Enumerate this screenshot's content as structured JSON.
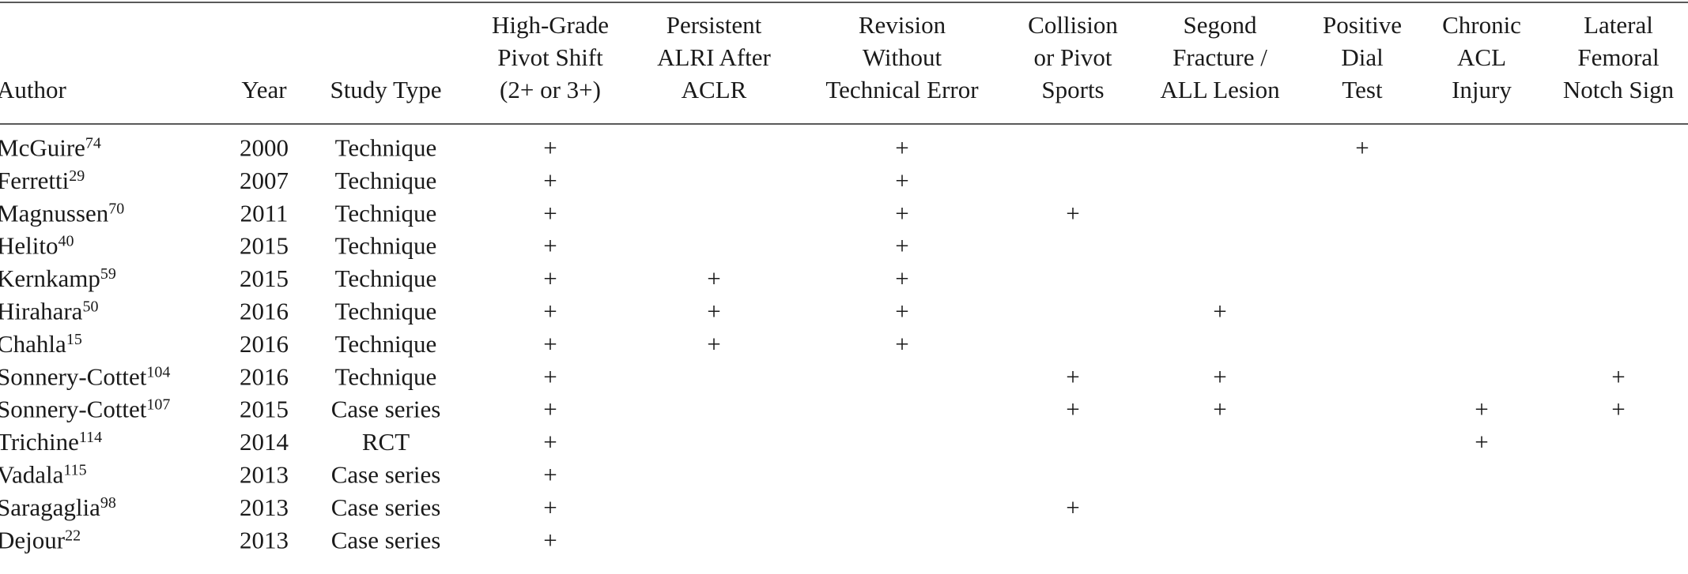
{
  "table": {
    "columns": [
      [
        "Author"
      ],
      [
        "Year"
      ],
      [
        "Study Type"
      ],
      [
        "High-Grade",
        "Pivot Shift",
        "(2+ or 3+)"
      ],
      [
        "Persistent",
        "ALRI After",
        "ACLR"
      ],
      [
        "Revision",
        "Without",
        "Technical Error"
      ],
      [
        "Collision",
        "or Pivot",
        "Sports"
      ],
      [
        "Segond",
        "Fracture /",
        "ALL Lesion"
      ],
      [
        "Positive",
        "Dial",
        "Test"
      ],
      [
        "Chronic",
        "ACL",
        "Injury"
      ],
      [
        "Lateral",
        "Femoral",
        "Notch Sign"
      ]
    ],
    "rows": [
      {
        "author": "McGuire",
        "ref": "74",
        "cells": [
          "2000",
          "Technique",
          "+",
          null,
          "+",
          null,
          null,
          "+",
          null,
          null
        ]
      },
      {
        "author": "Ferretti",
        "ref": "29",
        "cells": [
          "2007",
          "Technique",
          "+",
          null,
          "+",
          null,
          null,
          null,
          null,
          null
        ]
      },
      {
        "author": "Magnussen",
        "ref": "70",
        "cells": [
          "2011",
          "Technique",
          "+",
          null,
          "+",
          "+",
          null,
          null,
          null,
          null
        ]
      },
      {
        "author": "Helito",
        "ref": "40",
        "cells": [
          "2015",
          "Technique",
          "+",
          null,
          "+",
          null,
          null,
          null,
          null,
          null
        ]
      },
      {
        "author": "Kernkamp",
        "ref": "59",
        "cells": [
          "2015",
          "Technique",
          "+",
          "+",
          "+",
          null,
          null,
          null,
          null,
          null
        ]
      },
      {
        "author": "Hirahara",
        "ref": "50",
        "cells": [
          "2016",
          "Technique",
          "+",
          "+",
          "+",
          null,
          "+",
          null,
          null,
          null
        ]
      },
      {
        "author": "Chahla",
        "ref": "15",
        "cells": [
          "2016",
          "Technique",
          "+",
          "+",
          "+",
          null,
          null,
          null,
          null,
          null
        ]
      },
      {
        "author": "Sonnery-Cottet",
        "ref": "104",
        "cells": [
          "2016",
          "Technique",
          "+",
          null,
          null,
          "+",
          "+",
          null,
          null,
          "+"
        ]
      },
      {
        "author": "Sonnery-Cottet",
        "ref": "107",
        "cells": [
          "2015",
          "Case series",
          "+",
          null,
          null,
          "+",
          "+",
          null,
          "+",
          "+"
        ]
      },
      {
        "author": "Trichine",
        "ref": "114",
        "cells": [
          "2014",
          "RCT",
          "+",
          null,
          null,
          null,
          null,
          null,
          "+",
          null
        ]
      },
      {
        "author": "Vadala",
        "ref": "115",
        "cells": [
          "2013",
          "Case series",
          "+",
          null,
          null,
          null,
          null,
          null,
          null,
          null
        ]
      },
      {
        "author": "Saragaglia",
        "ref": "98",
        "cells": [
          "2013",
          "Case series",
          "+",
          null,
          null,
          "+",
          null,
          null,
          null,
          null
        ]
      },
      {
        "author": "Dejour",
        "ref": "22",
        "cells": [
          "2013",
          "Case series",
          "+",
          null,
          null,
          null,
          null,
          null,
          null,
          null
        ]
      }
    ]
  }
}
